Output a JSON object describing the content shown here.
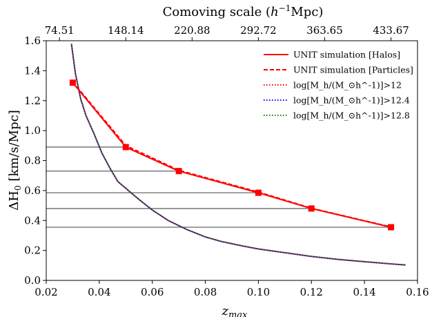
{
  "chart_data": {
    "type": "line",
    "title": "",
    "xlabel": "z_max",
    "ylabel": "ΔH0 [km/s/Mpc]",
    "top_axis_label": "Comoving scale (h^-1 Mpc)",
    "xlim": [
      0.02,
      0.16
    ],
    "ylim": [
      0.0,
      1.6
    ],
    "x_ticks": [
      0.02,
      0.04,
      0.06,
      0.08,
      0.1,
      0.12,
      0.14,
      0.16
    ],
    "x_tick_labels": [
      "0.02",
      "0.04",
      "0.06",
      "0.08",
      "0.10",
      "0.12",
      "0.14",
      "0.16"
    ],
    "y_ticks": [
      0.0,
      0.2,
      0.4,
      0.6,
      0.8,
      1.0,
      1.2,
      1.4,
      1.6
    ],
    "y_tick_labels": [
      "0.0",
      "0.2",
      "0.4",
      "0.6",
      "0.8",
      "1.0",
      "1.2",
      "1.4",
      "1.6"
    ],
    "top_ticks": [
      {
        "z": 0.025,
        "label": "74.51"
      },
      {
        "z": 0.05,
        "label": "148.14"
      },
      {
        "z": 0.075,
        "label": "220.88"
      },
      {
        "z": 0.1,
        "label": "292.72"
      },
      {
        "z": 0.125,
        "label": "363.65"
      },
      {
        "z": 0.15,
        "label": "433.67"
      }
    ],
    "grid": false,
    "legend_position": "top-right",
    "series": [
      {
        "name": "UNIT simulation [Halos]",
        "style": "solid",
        "color": "#ff0000",
        "markers": "square",
        "x": [
          0.03,
          0.05,
          0.07,
          0.1,
          0.12,
          0.15
        ],
        "y": [
          1.32,
          0.89,
          0.73,
          0.585,
          0.48,
          0.355
        ]
      },
      {
        "name": "UNIT simulation [Particles]",
        "style": "dashed",
        "color": "#ff0000",
        "x": [
          0.03,
          0.05,
          0.07,
          0.1,
          0.12,
          0.15
        ],
        "y": [
          1.325,
          0.9,
          0.735,
          0.59,
          0.482,
          0.357
        ]
      },
      {
        "name": "log[M_h/(M_⊙h^-1)]>12",
        "style": "dotted",
        "color": "#ff0000",
        "x": [
          0.0295,
          0.031,
          0.033,
          0.035,
          0.038,
          0.041,
          0.044,
          0.047,
          0.051,
          0.055,
          0.06,
          0.066,
          0.073,
          0.08,
          0.086,
          0.094,
          0.1,
          0.11,
          0.12,
          0.13,
          0.14,
          0.15,
          0.1555
        ],
        "y": [
          1.58,
          1.38,
          1.21,
          1.1,
          0.98,
          0.85,
          0.75,
          0.66,
          0.6,
          0.54,
          0.47,
          0.4,
          0.34,
          0.29,
          0.26,
          0.23,
          0.21,
          0.185,
          0.16,
          0.14,
          0.125,
          0.11,
          0.103
        ]
      },
      {
        "name": "log[M_h/(M_⊙h^-1)]>12.4",
        "style": "dotted",
        "color": "#0000ff",
        "x": [
          0.0295,
          0.031,
          0.033,
          0.035,
          0.038,
          0.041,
          0.044,
          0.047,
          0.051,
          0.055,
          0.06,
          0.066,
          0.073,
          0.08,
          0.086,
          0.094,
          0.1,
          0.11,
          0.12,
          0.13,
          0.14,
          0.15,
          0.1555
        ],
        "y": [
          1.58,
          1.38,
          1.21,
          1.1,
          0.98,
          0.85,
          0.75,
          0.66,
          0.6,
          0.54,
          0.47,
          0.4,
          0.34,
          0.29,
          0.26,
          0.23,
          0.21,
          0.185,
          0.16,
          0.14,
          0.125,
          0.11,
          0.103
        ]
      },
      {
        "name": "log[M_h/(M_⊙h^-1)]>12.8",
        "style": "dotted",
        "color": "#008000",
        "x": [
          0.0295,
          0.031,
          0.033,
          0.035,
          0.038,
          0.041,
          0.044,
          0.047,
          0.051,
          0.055,
          0.06,
          0.066,
          0.073,
          0.08,
          0.086,
          0.094,
          0.1,
          0.11,
          0.12,
          0.13,
          0.14,
          0.15,
          0.1555
        ],
        "y": [
          1.58,
          1.38,
          1.21,
          1.1,
          0.98,
          0.85,
          0.75,
          0.66,
          0.6,
          0.54,
          0.47,
          0.4,
          0.34,
          0.29,
          0.26,
          0.23,
          0.21,
          0.185,
          0.16,
          0.14,
          0.125,
          0.11,
          0.103
        ]
      }
    ],
    "reference_lines": {
      "color": "#808080",
      "lines": [
        {
          "y": 0.89,
          "x_end": 0.05
        },
        {
          "y": 0.73,
          "x_end": 0.07
        },
        {
          "y": 0.585,
          "x_end": 0.1
        },
        {
          "y": 0.48,
          "x_end": 0.12
        },
        {
          "y": 0.355,
          "x_end": 0.15
        }
      ]
    }
  }
}
